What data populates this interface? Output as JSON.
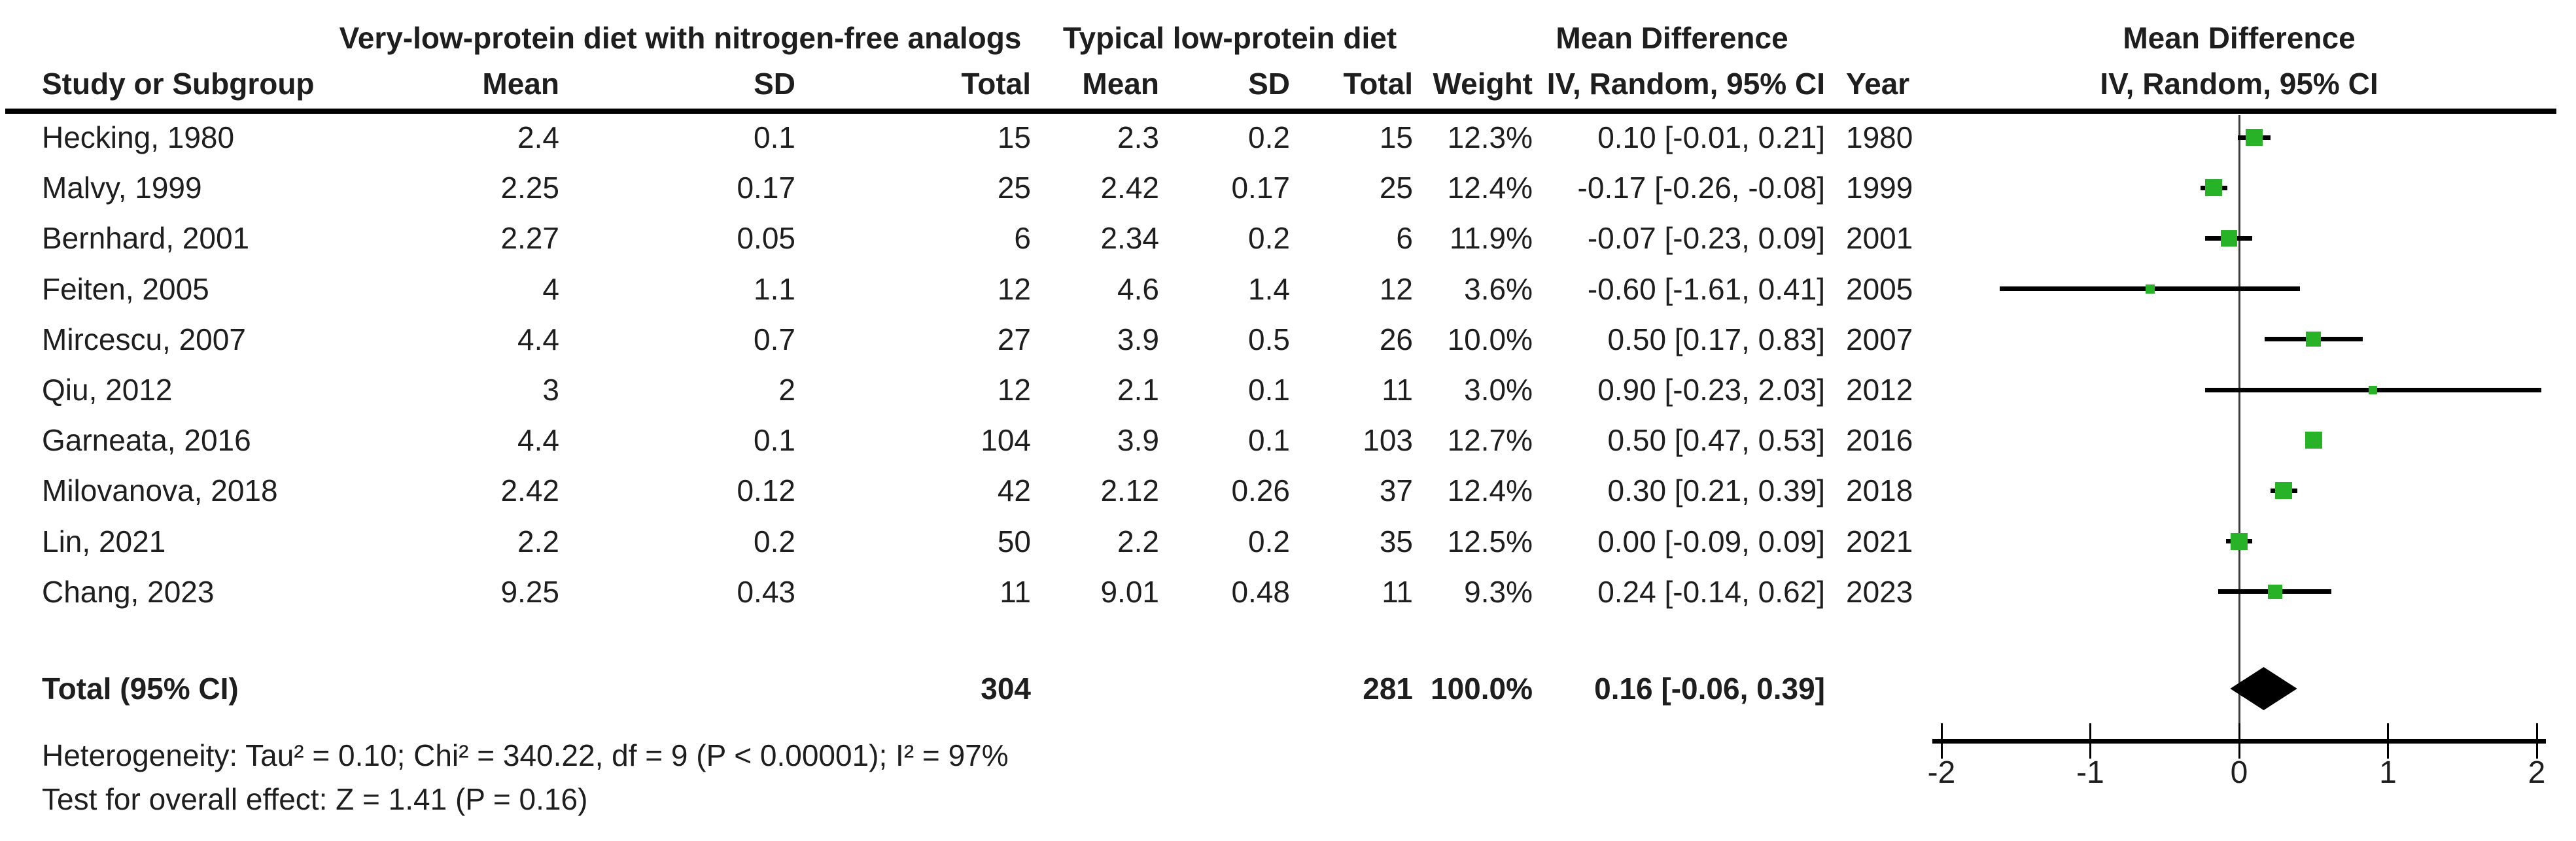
{
  "figure": {
    "header": {
      "group1": "Very-low-protein diet with nitrogen-free analogs",
      "group2": "Typical low-protein diet",
      "md_col_title": "Mean Difference",
      "plot_title": "Mean Difference",
      "effect_label": "IV, Random, 95% CI",
      "columns": {
        "study": "Study or Subgroup",
        "mean": "Mean",
        "sd": "SD",
        "total": "Total",
        "weight": "Weight",
        "iv_random": "IV, Random, 95% CI",
        "year": "Year"
      }
    },
    "rows": [
      {
        "study": "Hecking, 1980",
        "mean1": "2.4",
        "sd1": "0.1",
        "total1": "15",
        "mean2": "2.3",
        "sd2": "0.2",
        "total2": "15",
        "weight": "12.3%",
        "md": "0.10 [-0.01, 0.21]",
        "year": "1980"
      },
      {
        "study": "Malvy, 1999",
        "mean1": "2.25",
        "sd1": "0.17",
        "total1": "25",
        "mean2": "2.42",
        "sd2": "0.17",
        "total2": "25",
        "weight": "12.4%",
        "md": "-0.17 [-0.26, -0.08]",
        "year": "1999"
      },
      {
        "study": "Bernhard, 2001",
        "mean1": "2.27",
        "sd1": "0.05",
        "total1": "6",
        "mean2": "2.34",
        "sd2": "0.2",
        "total2": "6",
        "weight": "11.9%",
        "md": "-0.07 [-0.23, 0.09]",
        "year": "2001"
      },
      {
        "study": "Feiten, 2005",
        "mean1": "4",
        "sd1": "1.1",
        "total1": "12",
        "mean2": "4.6",
        "sd2": "1.4",
        "total2": "12",
        "weight": "3.6%",
        "md": "-0.60 [-1.61, 0.41]",
        "year": "2005"
      },
      {
        "study": "Mircescu, 2007",
        "mean1": "4.4",
        "sd1": "0.7",
        "total1": "27",
        "mean2": "3.9",
        "sd2": "0.5",
        "total2": "26",
        "weight": "10.0%",
        "md": "0.50 [0.17, 0.83]",
        "year": "2007"
      },
      {
        "study": "Qiu, 2012",
        "mean1": "3",
        "sd1": "2",
        "total1": "12",
        "mean2": "2.1",
        "sd2": "0.1",
        "total2": "11",
        "weight": "3.0%",
        "md": "0.90 [-0.23, 2.03]",
        "year": "2012"
      },
      {
        "study": "Garneata, 2016",
        "mean1": "4.4",
        "sd1": "0.1",
        "total1": "104",
        "mean2": "3.9",
        "sd2": "0.1",
        "total2": "103",
        "weight": "12.7%",
        "md": "0.50 [0.47, 0.53]",
        "year": "2016"
      },
      {
        "study": "Milovanova, 2018",
        "mean1": "2.42",
        "sd1": "0.12",
        "total1": "42",
        "mean2": "2.12",
        "sd2": "0.26",
        "total2": "37",
        "weight": "12.4%",
        "md": "0.30 [0.21, 0.39]",
        "year": "2018"
      },
      {
        "study": "Lin, 2021",
        "mean1": "2.2",
        "sd1": "0.2",
        "total1": "50",
        "mean2": "2.2",
        "sd2": "0.2",
        "total2": "35",
        "weight": "12.5%",
        "md": "0.00 [-0.09, 0.09]",
        "year": "2021"
      },
      {
        "study": "Chang, 2023",
        "mean1": "9.25",
        "sd1": "0.43",
        "total1": "11",
        "mean2": "9.01",
        "sd2": "0.48",
        "total2": "11",
        "weight": "9.3%",
        "md": "0.24 [-0.14, 0.62]",
        "year": "2023"
      }
    ],
    "totals": {
      "label": "Total (95% CI)",
      "total1": "304",
      "total2": "281",
      "weight": "100.0%",
      "md": "0.16 [-0.06, 0.39]"
    },
    "footer": {
      "heterogeneity": "Heterogeneity: Tau² = 0.10; Chi² = 340.22, df = 9 (P < 0.00001); I² = 97%",
      "overall_effect": "Test for overall effect: Z = 1.41 (P = 0.16)"
    },
    "colors": {
      "marker_green": "#28B228",
      "line_black": "#000000",
      "zero_line_gray": "#3C3C3C"
    }
  },
  "chart_data": {
    "type": "forest",
    "title": "Mean Difference",
    "effect_measure": "IV, Random, 95% CI",
    "x_range": [
      -2,
      2
    ],
    "x_ticks": [
      -2,
      -1,
      0,
      1,
      2
    ],
    "grid": false,
    "studies": [
      {
        "label": "Hecking, 1980",
        "year": 1980,
        "effect": 0.1,
        "ci_low": -0.01,
        "ci_high": 0.21,
        "weight_pct": 12.3
      },
      {
        "label": "Malvy, 1999",
        "year": 1999,
        "effect": -0.17,
        "ci_low": -0.26,
        "ci_high": -0.08,
        "weight_pct": 12.4
      },
      {
        "label": "Bernhard, 2001",
        "year": 2001,
        "effect": -0.07,
        "ci_low": -0.23,
        "ci_high": 0.09,
        "weight_pct": 11.9
      },
      {
        "label": "Feiten, 2005",
        "year": 2005,
        "effect": -0.6,
        "ci_low": -1.61,
        "ci_high": 0.41,
        "weight_pct": 3.6
      },
      {
        "label": "Mircescu, 2007",
        "year": 2007,
        "effect": 0.5,
        "ci_low": 0.17,
        "ci_high": 0.83,
        "weight_pct": 10.0
      },
      {
        "label": "Qiu, 2012",
        "year": 2012,
        "effect": 0.9,
        "ci_low": -0.23,
        "ci_high": 2.03,
        "weight_pct": 3.0
      },
      {
        "label": "Garneata, 2016",
        "year": 2016,
        "effect": 0.5,
        "ci_low": 0.47,
        "ci_high": 0.53,
        "weight_pct": 12.7
      },
      {
        "label": "Milovanova, 2018",
        "year": 2018,
        "effect": 0.3,
        "ci_low": 0.21,
        "ci_high": 0.39,
        "weight_pct": 12.4
      },
      {
        "label": "Lin, 2021",
        "year": 2021,
        "effect": 0.0,
        "ci_low": -0.09,
        "ci_high": 0.09,
        "weight_pct": 12.5
      },
      {
        "label": "Chang, 2023",
        "year": 2023,
        "effect": 0.24,
        "ci_low": -0.14,
        "ci_high": 0.62,
        "weight_pct": 9.3
      }
    ],
    "overall": {
      "label": "Total (95% CI)",
      "effect": 0.16,
      "ci_low": -0.06,
      "ci_high": 0.39,
      "weight_pct": 100.0
    }
  }
}
